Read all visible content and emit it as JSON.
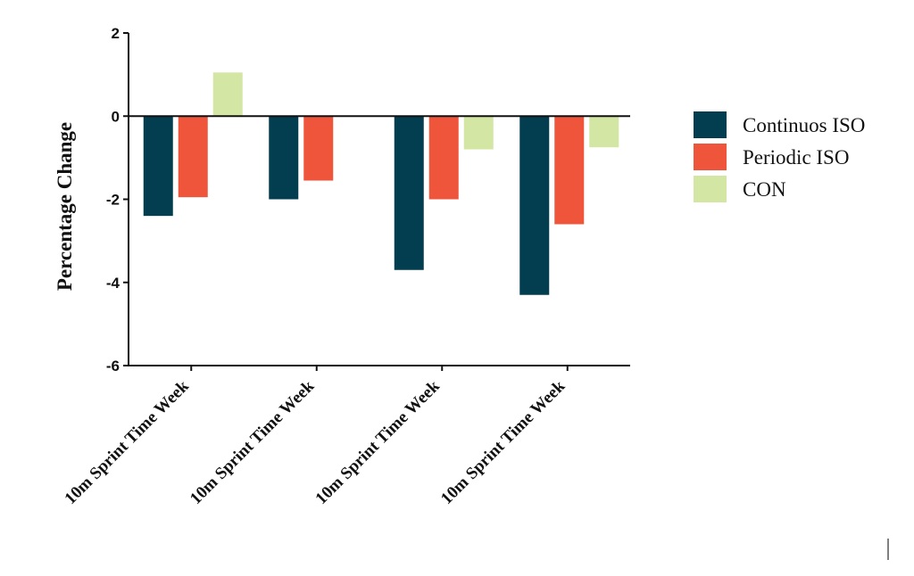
{
  "chart_data": {
    "type": "bar",
    "ylabel": "Percentage Change",
    "xlabel": "",
    "ylim": [
      -6,
      2
    ],
    "yticks": [
      2,
      0,
      -2,
      -4,
      -6
    ],
    "categories": [
      "10m Sprint Time Week",
      "10m Sprint Time Week",
      "10m Sprint Time Week",
      "10m Sprint Time Week"
    ],
    "series": [
      {
        "name": "Continuos ISO",
        "color": "#023e4f",
        "values": [
          -2.4,
          -2.0,
          -3.7,
          -4.3
        ]
      },
      {
        "name": "Periodic ISO",
        "color": "#ef553b",
        "values": [
          -1.95,
          -1.55,
          -2.0,
          -2.6
        ]
      },
      {
        "name": "CON",
        "color": "#d4e6a4",
        "values": [
          1.05,
          null,
          -0.8,
          -0.75
        ]
      }
    ],
    "legend_position": "right",
    "grid": false
  }
}
